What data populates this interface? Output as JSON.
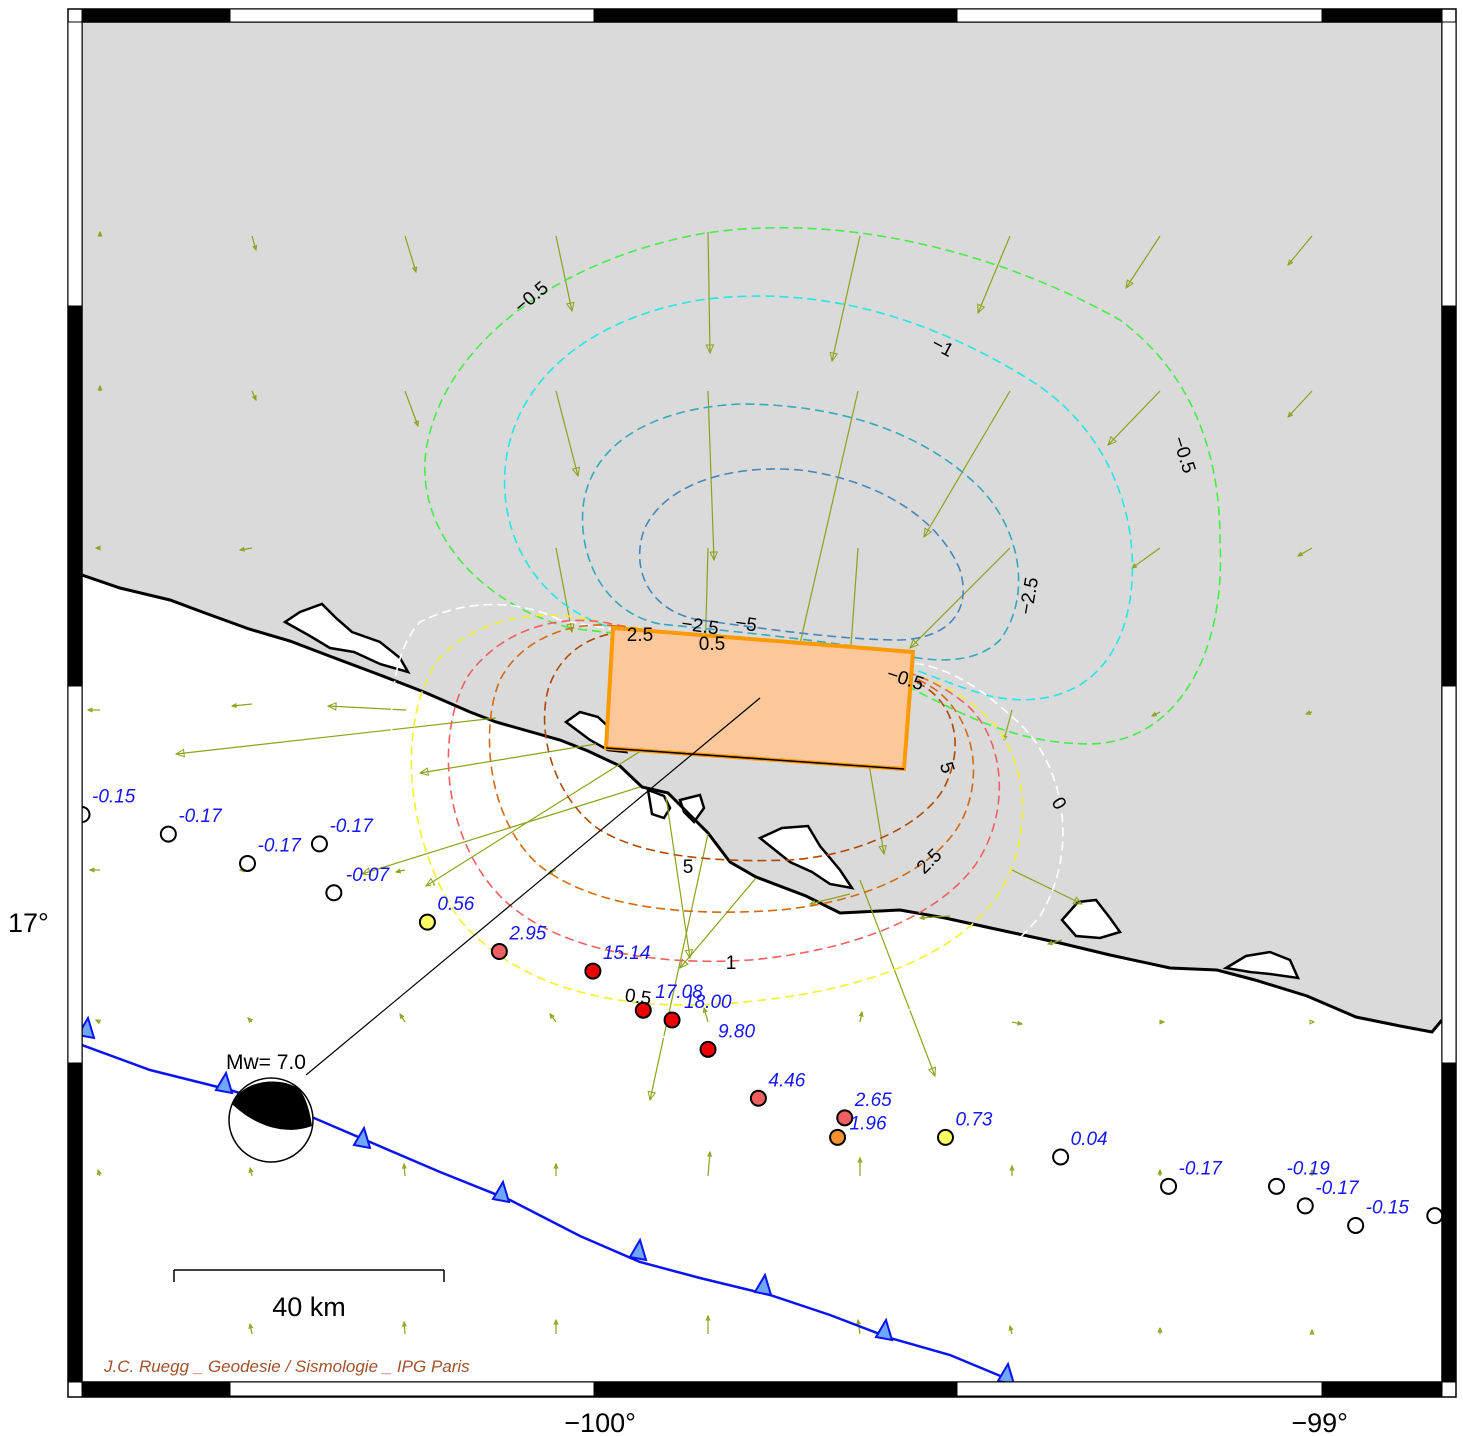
{
  "map": {
    "axes": {
      "x_labels": [
        {
          "lon": -100.0,
          "text": "−100°"
        },
        {
          "lon": -99.0,
          "text": "−99°"
        }
      ],
      "y_labels": [
        {
          "lat": 17.0,
          "text": "17°"
        }
      ]
    },
    "extent": {
      "lon": [
        -100.72,
        -98.83
      ],
      "lat": [
        16.53,
        17.92
      ]
    },
    "colors": {
      "land": "#dadada",
      "sea": "#ffffff",
      "coast": "#000000",
      "trench": "#0a14f0",
      "vectors": "#8aa31a",
      "fault_fill": "#fcc79a",
      "fault_edge": "#ff9900",
      "station_labels": "#1515ff",
      "credit": "#a0522d"
    },
    "scale_bar": {
      "label": "40 km"
    },
    "focal_mechanism": {
      "magnitude_label": "Mw= 7.0"
    },
    "credit": "J.C. Ruegg _ Geodesie / Sismologie _ IPG Paris",
    "stations": [
      {
        "lon": -100.72,
        "lat": 17.11,
        "value": "-0.15",
        "color": "#ffffff"
      },
      {
        "lon": -100.6,
        "lat": 17.09,
        "value": "-0.17",
        "color": "#ffffff"
      },
      {
        "lon": -100.49,
        "lat": 17.06,
        "value": "-0.17",
        "color": "#ffffff"
      },
      {
        "lon": -100.39,
        "lat": 17.08,
        "value": "-0.17",
        "color": "#ffffff"
      },
      {
        "lon": -100.37,
        "lat": 17.03,
        "value": "-0.07",
        "color": "#ffffff"
      },
      {
        "lon": -100.24,
        "lat": 17.0,
        "value": "0.56",
        "color": "#ffff66"
      },
      {
        "lon": -100.14,
        "lat": 16.97,
        "value": "2.95",
        "color": "#f06060"
      },
      {
        "lon": -100.01,
        "lat": 16.95,
        "value": "15.14",
        "color": "#ee0000"
      },
      {
        "lon": -99.94,
        "lat": 16.91,
        "value": "17.08",
        "color": "#ee0000"
      },
      {
        "lon": -99.9,
        "lat": 16.9,
        "value": "18.00",
        "color": "#ee0000"
      },
      {
        "lon": -99.85,
        "lat": 16.87,
        "value": "9.80",
        "color": "#ee0000"
      },
      {
        "lon": -99.78,
        "lat": 16.82,
        "value": "4.46",
        "color": "#f06060"
      },
      {
        "lon": -99.66,
        "lat": 16.8,
        "value": "2.65",
        "color": "#f06060"
      },
      {
        "lon": -99.67,
        "lat": 16.78,
        "value": "1.96",
        "color": "#f59030"
      },
      {
        "lon": -99.52,
        "lat": 16.78,
        "value": "0.73",
        "color": "#ffff66"
      },
      {
        "lon": -99.36,
        "lat": 16.76,
        "value": "0.04",
        "color": "#ffffff"
      },
      {
        "lon": -99.21,
        "lat": 16.73,
        "value": "-0.17",
        "color": "#ffffff"
      },
      {
        "lon": -99.06,
        "lat": 16.73,
        "value": "-0.19",
        "color": "#ffffff"
      },
      {
        "lon": -99.02,
        "lat": 16.71,
        "value": "-0.17",
        "color": "#ffffff"
      },
      {
        "lon": -98.95,
        "lat": 16.69,
        "value": "-0.15",
        "color": "#ffffff"
      },
      {
        "lon": -98.84,
        "lat": 16.7,
        "value": "",
        "color": "#ffffff"
      }
    ],
    "contours": [
      {
        "value": "-0.5",
        "color": "#44ee44",
        "labels": [
          "−0.5",
          "−0.5",
          "−0.5"
        ]
      },
      {
        "value": "-1",
        "color": "#22e8e8",
        "labels": [
          "−1"
        ]
      },
      {
        "value": "-2.5",
        "color": "#33aabb",
        "labels": [
          "−2.5",
          "−2.5"
        ]
      },
      {
        "value": "-5",
        "color": "#4488bb",
        "labels": [
          "−5"
        ]
      },
      {
        "value": "0",
        "color": "#ffffff",
        "labels": [
          "0"
        ]
      },
      {
        "value": "0.5",
        "color": "#f2f22a",
        "labels": [
          "0.5",
          "0.5"
        ]
      },
      {
        "value": "1",
        "color": "#f06060",
        "labels": [
          "1"
        ]
      },
      {
        "value": "2.5",
        "color": "#d26a10",
        "labels": [
          "2.5",
          "2.5"
        ]
      },
      {
        "value": "5",
        "color": "#b04800",
        "labels": [
          "5",
          "5"
        ]
      }
    ]
  }
}
